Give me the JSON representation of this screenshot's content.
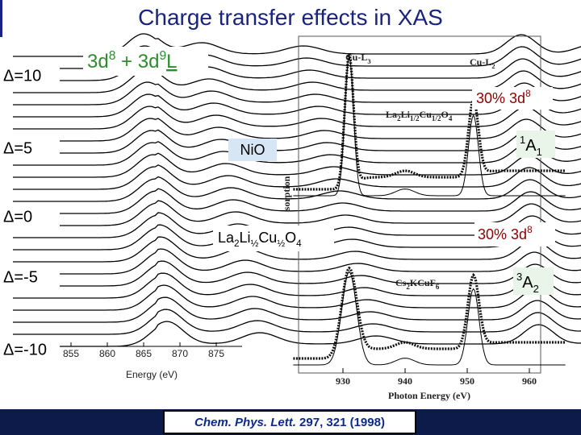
{
  "title": "Charge transfer effects in XAS",
  "delta_labels": [
    "Δ=10",
    "Δ=5",
    "Δ=0",
    "Δ=-5",
    "Δ=-10"
  ],
  "config_label": [
    "3d",
    "8",
    " + 3d",
    "9",
    "L"
  ],
  "left_plot": {
    "xticks": [
      "855",
      "860",
      "865",
      "870",
      "875"
    ],
    "xlabel": "Energy (eV)"
  },
  "right_plot": {
    "edge_labels": [
      [
        "Cu-L",
        "3"
      ],
      [
        "Cu-L",
        "2"
      ]
    ],
    "compound_top": [
      "La",
      "2",
      "Li",
      "1/2",
      "Cu",
      "1/2",
      "O",
      "4"
    ],
    "compound_bottom": [
      "Cs",
      "2",
      "KCuF",
      "6"
    ],
    "ylabel_fragment": "sorption",
    "xticks": [
      "930",
      "940",
      "950",
      "960"
    ],
    "xlabel": "Photon Energy (eV)"
  },
  "annotations": {
    "top_weight": [
      "30% 3d",
      "8"
    ],
    "nio": "NiO",
    "state_top": [
      "1",
      "A",
      "1"
    ],
    "compound": [
      "La",
      "2",
      "Li",
      "½",
      "Cu",
      "½",
      "O",
      "4"
    ],
    "bottom_weight": [
      "30% 3d",
      "8"
    ],
    "state_bottom": [
      "3",
      "A",
      "2"
    ]
  },
  "citation": [
    "Chem. Phys. Lett.",
    " 297, 321 (1998)"
  ]
}
